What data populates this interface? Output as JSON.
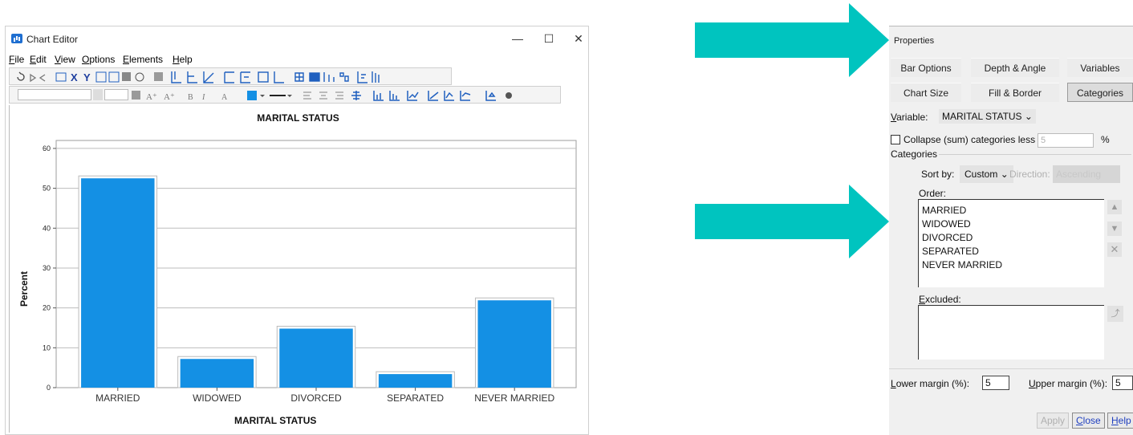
{
  "chart_editor": {
    "title": "Chart Editor",
    "window_controls": {
      "minimize": "—",
      "maximize": "☐",
      "close": "✕"
    },
    "menu": [
      "File",
      "Edit",
      "View",
      "Options",
      "Elements",
      "Help"
    ]
  },
  "chart_data": {
    "type": "bar",
    "title": "MARITAL STATUS",
    "xlabel": "MARITAL STATUS",
    "ylabel": "Percent",
    "categories": [
      "MARRIED",
      "WIDOWED",
      "DIVORCED",
      "SEPARATED",
      "NEVER MARRIED"
    ],
    "values": [
      52.5,
      7.2,
      14.8,
      3.4,
      21.9
    ],
    "ylim": [
      0,
      62
    ],
    "yticks": [
      0,
      10,
      20,
      30,
      40,
      50,
      60
    ],
    "grid": true,
    "bar_color": "#1490e4"
  },
  "arrows": {
    "color": "#00c4bf"
  },
  "properties": {
    "title": "Properties",
    "tabs_row1": [
      "Bar Options",
      "Depth & Angle",
      "Variables"
    ],
    "tabs_row2": [
      "Chart Size",
      "Fill & Border",
      "Categories"
    ],
    "variable_label": "Variable:",
    "variable_value": "MARITAL STATUS",
    "collapse_label": "Collapse (sum) categories less than:",
    "collapse_value": "5",
    "collapse_unit": "%",
    "categories_label": "Categories",
    "sort_by_label": "Sort by:",
    "sort_by_value": "Custom",
    "direction_label": "Direction:",
    "direction_value": "Ascending",
    "order_label": "Order:",
    "order_items": [
      "MARRIED",
      "WIDOWED",
      "DIVORCED",
      "SEPARATED",
      "NEVER MARRIED"
    ],
    "excluded_label": "Excluded:",
    "lower_margin_label": "Lower margin (%):",
    "lower_margin_value": "5",
    "upper_margin_label": "Upper margin (%):",
    "upper_margin_value": "5",
    "buttons": {
      "apply": "Apply",
      "close": "Close",
      "help": "Help"
    }
  }
}
